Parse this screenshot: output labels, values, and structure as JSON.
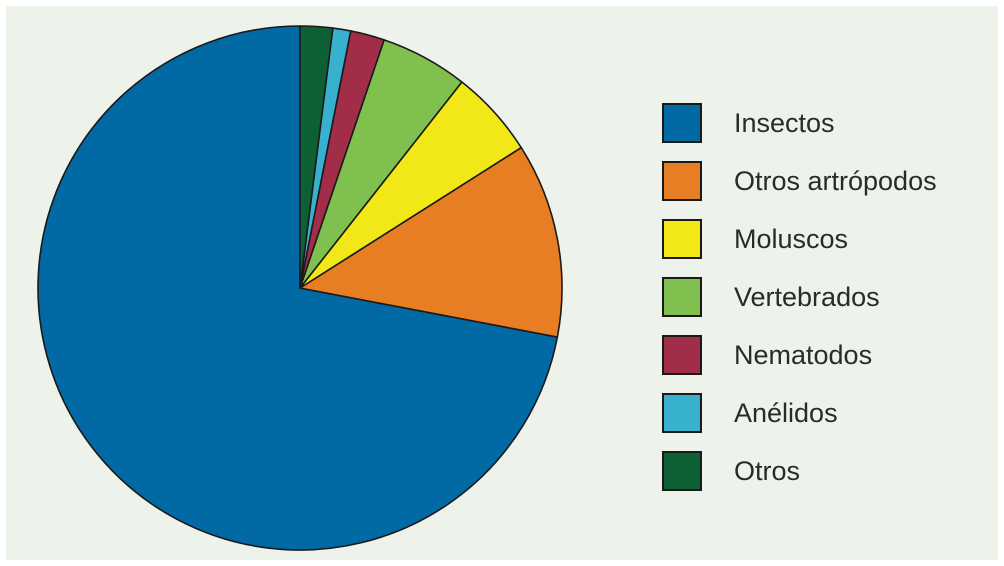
{
  "chart_data": {
    "type": "pie",
    "legend_position": "right",
    "series": [
      {
        "name": "Insectos",
        "value": 72.0,
        "color": "#0169a3"
      },
      {
        "name": "Otros artrópodos",
        "value": 12.0,
        "color": "#e87e24"
      },
      {
        "name": "Moluscos",
        "value": 5.4,
        "color": "#f2e717"
      },
      {
        "name": "Vertebrados",
        "value": 5.4,
        "color": "#7fc04f"
      },
      {
        "name": "Nematodos",
        "value": 2.1,
        "color": "#a12d48"
      },
      {
        "name": "Anélidos",
        "value": 1.1,
        "color": "#38b1cf"
      },
      {
        "name": "Otros",
        "value": 2.0,
        "color": "#0d5f34"
      }
    ]
  }
}
